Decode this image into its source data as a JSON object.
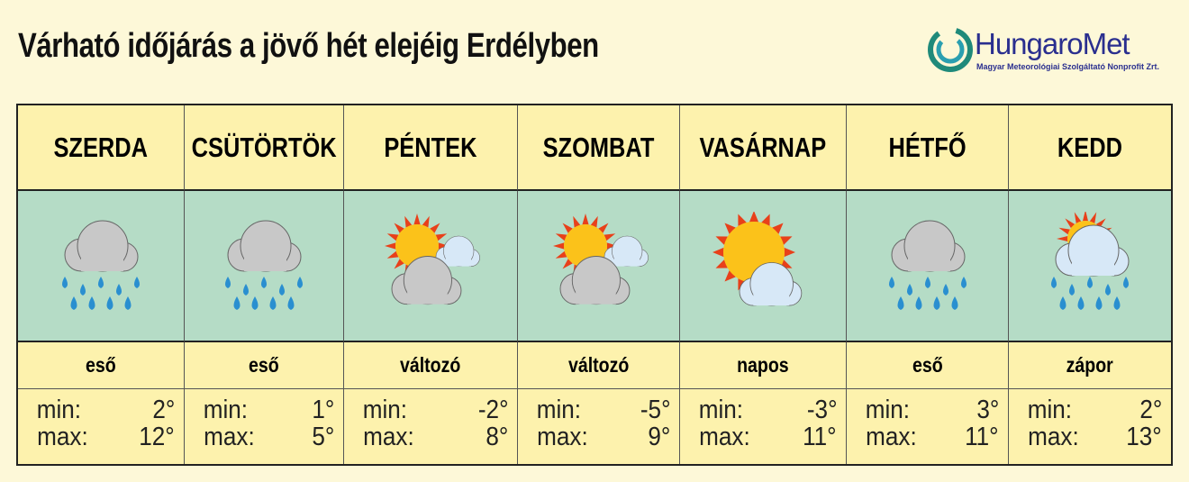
{
  "title": "Várható időjárás a jövő hét elejéig Erdélyben",
  "logo": {
    "name": "HungaroMet",
    "subtitle": "Magyar Meteorológiai Szolgáltató Nonprofit Zrt."
  },
  "labels": {
    "min": "min:",
    "max": "max:"
  },
  "days": [
    {
      "day": "SZERDA",
      "icon": "rain",
      "desc": "eső",
      "min": "2°",
      "max": "12°"
    },
    {
      "day": "CSÜTÖRTÖK",
      "icon": "rain",
      "desc": "eső",
      "min": "1°",
      "max": "5°"
    },
    {
      "day": "PÉNTEK",
      "icon": "variable",
      "desc": "változó",
      "min": "-2°",
      "max": "8°"
    },
    {
      "day": "SZOMBAT",
      "icon": "variable",
      "desc": "változó",
      "min": "-5°",
      "max": "9°"
    },
    {
      "day": "VASÁRNAP",
      "icon": "sunny",
      "desc": "napos",
      "min": "-3°",
      "max": "11°"
    },
    {
      "day": "HÉTFŐ",
      "icon": "rain",
      "desc": "eső",
      "min": "3°",
      "max": "11°"
    },
    {
      "day": "KEDD",
      "icon": "shower",
      "desc": "zápor",
      "min": "2°",
      "max": "13°"
    }
  ],
  "colors": {
    "header": "#fdf2ad",
    "icon_row": "#b5dcc6",
    "background": "#fdf8d8",
    "brand": "#2a2f8f"
  }
}
